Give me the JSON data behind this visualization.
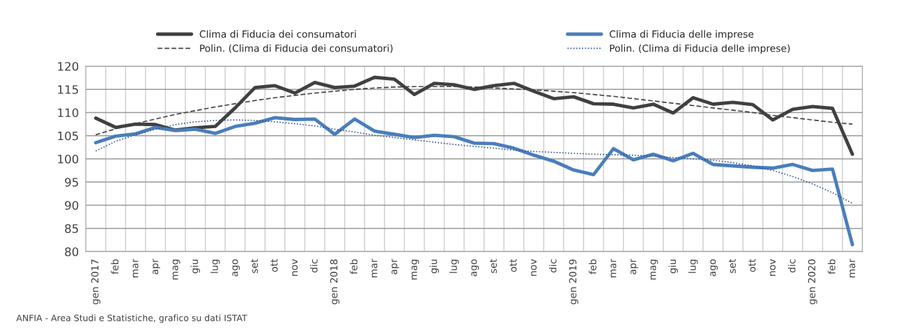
{
  "chart_data": {
    "type": "line",
    "categories": [
      "gen 2017",
      "feb",
      "mar",
      "apr",
      "mag",
      "giu",
      "lug",
      "ago",
      "set",
      "ott",
      "nov",
      "dic",
      "gen 2018",
      "feb",
      "mar",
      "apr",
      "mag",
      "giu",
      "lug",
      "ago",
      "set",
      "ott",
      "nov",
      "dic",
      "gen 2019",
      "feb",
      "mar",
      "apr",
      "mag",
      "giu",
      "lug",
      "ago",
      "set",
      "ott",
      "nov",
      "dic",
      "gen 2020",
      "feb",
      "mar"
    ],
    "series": [
      {
        "name": "Clima di Fiducia dei consumatori",
        "color": "#404040",
        "line_style": "solid",
        "values": [
          108.8,
          106.8,
          107.5,
          107.4,
          106.2,
          106.7,
          107.0,
          111.0,
          115.4,
          115.8,
          114.2,
          116.5,
          115.4,
          115.7,
          117.6,
          117.2,
          113.9,
          116.3,
          116.0,
          115.0,
          115.8,
          116.3,
          114.6,
          113.0,
          113.4,
          111.9,
          111.8,
          111.0,
          111.8,
          109.9,
          113.2,
          111.8,
          112.2,
          111.7,
          108.4,
          110.7,
          111.3,
          110.9,
          101.0
        ]
      },
      {
        "name": "Clima di Fiducia delle imprese",
        "color": "#4a7ebb",
        "line_style": "solid",
        "values": [
          103.5,
          104.9,
          105.4,
          106.8,
          106.1,
          106.4,
          105.5,
          107.0,
          107.7,
          108.9,
          108.5,
          108.6,
          105.3,
          108.6,
          106.0,
          105.3,
          104.6,
          105.1,
          104.8,
          103.4,
          103.3,
          102.3,
          100.8,
          99.5,
          97.6,
          96.6,
          102.2,
          99.8,
          101.0,
          99.6,
          101.2,
          98.8,
          98.5,
          98.2,
          98.0,
          98.8,
          97.5,
          97.8,
          81.5
        ]
      },
      {
        "name": "Polin. (Clima di Fiducia dei consumatori)",
        "color": "#404040",
        "line_style": "dashed",
        "values": [
          105.2,
          106.5,
          107.6,
          108.6,
          109.6,
          110.4,
          111.2,
          111.9,
          112.6,
          113.2,
          113.7,
          114.2,
          114.6,
          115.0,
          115.3,
          115.5,
          115.6,
          115.6,
          115.6,
          115.5,
          115.3,
          115.1,
          114.9,
          114.6,
          114.3,
          113.9,
          113.5,
          113.0,
          112.5,
          112.0,
          111.5,
          111.0,
          110.5,
          110.0,
          109.4,
          108.9,
          108.4,
          107.9,
          107.5
        ]
      },
      {
        "name": "Polin. (Clima di Fiducia delle imprese)",
        "color": "#2f5597",
        "line_style": "dotted",
        "values": [
          101.7,
          103.8,
          105.2,
          106.4,
          107.4,
          108.0,
          108.3,
          108.4,
          108.3,
          108.0,
          107.6,
          107.1,
          106.4,
          105.8,
          105.1,
          104.6,
          104.1,
          103.6,
          103.1,
          102.7,
          102.3,
          101.9,
          101.6,
          101.4,
          101.2,
          101.0,
          100.9,
          100.8,
          100.6,
          100.3,
          100.0,
          99.7,
          99.2,
          98.5,
          97.5,
          96.2,
          94.6,
          92.7,
          90.4
        ]
      }
    ],
    "ylim": [
      80,
      120
    ],
    "yticks": [
      80,
      85,
      90,
      95,
      100,
      105,
      110,
      115,
      120
    ],
    "grid": true,
    "legend": "top",
    "marker": "none",
    "annotations": [
      "ANFIA - Area Studi e Statistiche, grafico su dati ISTAT"
    ]
  }
}
